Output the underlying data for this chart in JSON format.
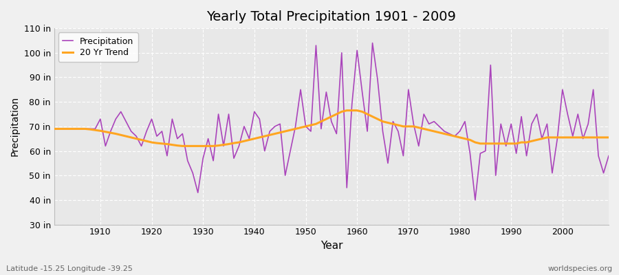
{
  "title": "Yearly Total Precipitation 1901 - 2009",
  "xlabel": "Year",
  "ylabel": "Precipitation",
  "subtitle": "Latitude -15.25 Longitude -39.25",
  "watermark": "worldspecies.org",
  "ylim": [
    30,
    110
  ],
  "yticks": [
    30,
    40,
    50,
    60,
    70,
    80,
    90,
    100,
    110
  ],
  "ytick_labels": [
    "30 in",
    "40 in",
    "50 in",
    "60 in",
    "70 in",
    "80 in",
    "90 in",
    "100 in",
    "110 in"
  ],
  "xticks": [
    1910,
    1920,
    1930,
    1940,
    1950,
    1960,
    1970,
    1980,
    1990,
    2000
  ],
  "precip_color": "#AA44BB",
  "trend_color": "#FFA520",
  "bg_color": "#EAEAEA",
  "plot_bg_color": "#E8E8E8",
  "grid_color": "#FFFFFF",
  "years": [
    1901,
    1902,
    1903,
    1904,
    1905,
    1906,
    1907,
    1908,
    1909,
    1910,
    1911,
    1912,
    1913,
    1914,
    1915,
    1916,
    1917,
    1918,
    1919,
    1920,
    1921,
    1922,
    1923,
    1924,
    1925,
    1926,
    1927,
    1928,
    1929,
    1930,
    1931,
    1932,
    1933,
    1934,
    1935,
    1936,
    1937,
    1938,
    1939,
    1940,
    1941,
    1942,
    1943,
    1944,
    1945,
    1946,
    1947,
    1948,
    1949,
    1950,
    1951,
    1952,
    1953,
    1954,
    1955,
    1956,
    1957,
    1958,
    1959,
    1960,
    1961,
    1962,
    1963,
    1964,
    1965,
    1966,
    1967,
    1968,
    1969,
    1970,
    1971,
    1972,
    1973,
    1974,
    1975,
    1976,
    1977,
    1978,
    1979,
    1980,
    1981,
    1982,
    1983,
    1984,
    1985,
    1986,
    1987,
    1988,
    1989,
    1990,
    1991,
    1992,
    1993,
    1994,
    1995,
    1996,
    1997,
    1998,
    1999,
    2000,
    2001,
    2002,
    2003,
    2004,
    2005,
    2006,
    2007,
    2008,
    2009
  ],
  "precipitation": [
    69,
    69,
    69,
    69,
    69,
    69,
    69,
    69,
    69,
    73,
    62,
    68,
    73,
    76,
    72,
    68,
    66,
    62,
    68,
    73,
    66,
    68,
    58,
    73,
    65,
    67,
    56,
    51,
    43,
    57,
    65,
    56,
    75,
    62,
    75,
    57,
    62,
    70,
    65,
    76,
    73,
    60,
    68,
    70,
    71,
    50,
    60,
    70,
    85,
    70,
    68,
    103,
    69,
    84,
    72,
    67,
    100,
    45,
    79,
    101,
    84,
    68,
    104,
    89,
    68,
    55,
    72,
    68,
    58,
    85,
    71,
    62,
    75,
    71,
    72,
    70,
    68,
    67,
    66,
    68,
    72,
    59,
    40,
    59,
    60,
    95,
    50,
    71,
    62,
    71,
    59,
    74,
    58,
    71,
    75,
    65,
    71,
    51,
    65,
    85,
    75,
    66,
    75,
    65,
    71,
    85,
    58,
    51,
    58
  ],
  "trend": [
    69.0,
    69.0,
    69.0,
    69.0,
    69.0,
    69.0,
    69.0,
    68.8,
    68.5,
    68.2,
    67.8,
    67.4,
    67.0,
    66.5,
    66.0,
    65.5,
    65.0,
    64.5,
    64.0,
    63.5,
    63.2,
    63.0,
    62.8,
    62.5,
    62.2,
    62.0,
    62.0,
    62.0,
    62.0,
    62.0,
    62.0,
    62.0,
    62.2,
    62.5,
    62.8,
    63.2,
    63.5,
    64.0,
    64.5,
    65.0,
    65.5,
    66.0,
    66.5,
    67.0,
    67.5,
    68.0,
    68.5,
    69.0,
    69.5,
    70.0,
    70.5,
    71.0,
    72.0,
    73.0,
    74.0,
    75.0,
    76.0,
    76.5,
    76.5,
    76.5,
    76.0,
    75.0,
    74.0,
    73.0,
    72.0,
    71.5,
    71.0,
    70.5,
    70.0,
    70.0,
    70.0,
    69.5,
    69.0,
    68.5,
    68.0,
    67.5,
    67.0,
    66.5,
    66.0,
    65.5,
    65.0,
    64.5,
    63.5,
    63.0,
    63.0,
    63.0,
    63.0,
    63.0,
    63.0,
    63.0,
    63.0,
    63.5,
    63.5,
    64.0,
    64.5,
    65.0,
    65.5,
    65.5,
    65.5,
    65.5,
    65.5,
    65.5,
    65.5,
    65.5,
    65.5,
    65.5,
    65.5,
    65.5,
    65.5
  ]
}
